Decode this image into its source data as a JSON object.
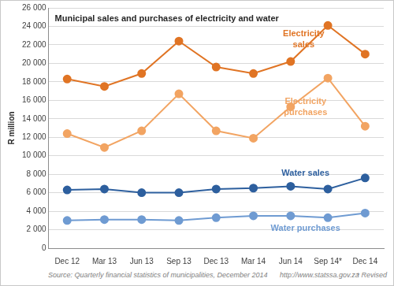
{
  "chart_data": {
    "type": "line",
    "title": "Municipal sales and purchases of electricity and water",
    "y_label": "R million",
    "categories": [
      "Dec 12",
      "Mar 13",
      "Jun 13",
      "Sep 13",
      "Dec 13",
      "Mar 14",
      "Jun 14",
      "Sep 14*",
      "Dec 14"
    ],
    "series": [
      {
        "name": "Electricity sales",
        "color": "#e07424",
        "marker": "circle",
        "values": [
          18300,
          17500,
          18900,
          22400,
          19600,
          18900,
          20200,
          24100,
          21000
        ]
      },
      {
        "name": "Electricity purchases",
        "color": "#f2a462",
        "marker": "circle",
        "values": [
          12400,
          10900,
          12700,
          16700,
          12700,
          11900,
          15300,
          18400,
          13200
        ]
      },
      {
        "name": "Water sales",
        "color": "#2d5f9e",
        "marker": "circle",
        "values": [
          6300,
          6400,
          6000,
          6000,
          6400,
          6500,
          6700,
          6400,
          7600
        ]
      },
      {
        "name": "Water purchases",
        "color": "#6f9bd2",
        "marker": "circle",
        "values": [
          3000,
          3100,
          3100,
          3000,
          3300,
          3500,
          3500,
          3300,
          3800
        ]
      }
    ],
    "ylim": [
      0,
      26000
    ],
    "yticks": [
      0,
      {
        "value": 2000,
        "label": "2 000"
      },
      {
        "value": 4000,
        "label": "4 000"
      },
      {
        "value": 6000,
        "label": "6 000"
      },
      {
        "value": 8000,
        "label": "8 000"
      },
      {
        "value": 10000,
        "label": "10 000"
      },
      {
        "value": 12000,
        "label": "12 000"
      },
      {
        "value": 14000,
        "label": "14 000"
      },
      {
        "value": 16000,
        "label": "16 000"
      },
      {
        "value": 18000,
        "label": "18 000"
      },
      {
        "value": 20000,
        "label": "20 000"
      },
      {
        "value": 22000,
        "label": "22 000"
      },
      {
        "value": 24000,
        "label": "24 000"
      },
      {
        "value": 26000,
        "label": "26 000"
      }
    ],
    "grid": true,
    "source": "Source: Quarterly financial statistics of municipalities, December 2014",
    "source_url": "http://www.statssa.gov.za",
    "footnote": "* Revised"
  }
}
